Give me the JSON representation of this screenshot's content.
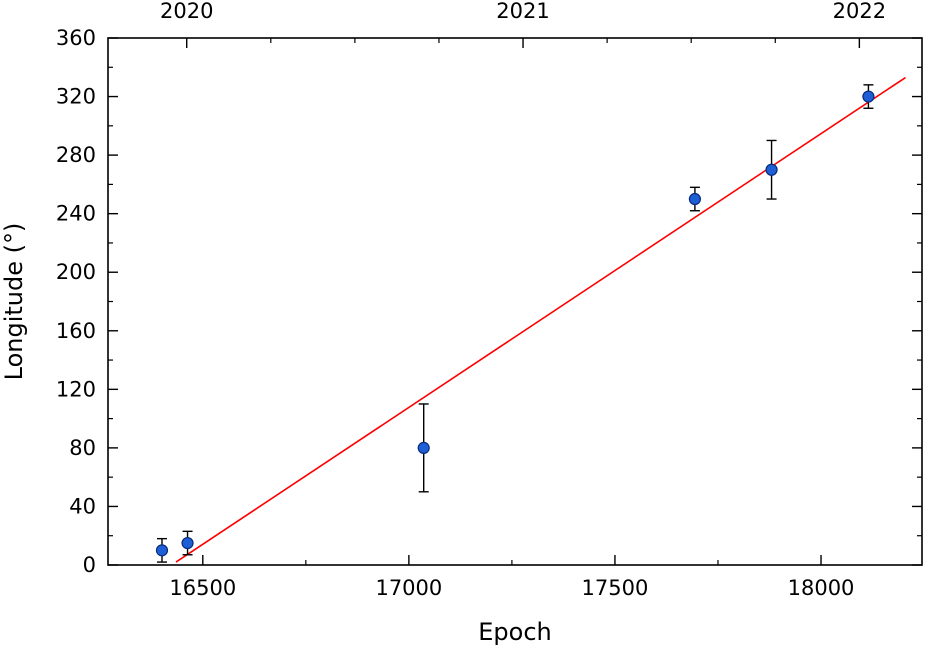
{
  "chart_data": {
    "type": "scatter",
    "title": "",
    "xlabel": "Epoch",
    "ylabel": "Longitude (°)",
    "xlim": [
      16270,
      18245
    ],
    "ylim": [
      0,
      360
    ],
    "x_ticks": [
      16500,
      17000,
      17500,
      18000
    ],
    "y_ticks": [
      0,
      40,
      80,
      120,
      160,
      200,
      240,
      280,
      320,
      360
    ],
    "top_axis": {
      "label_positions_epoch": [
        16461,
        17277,
        18093
      ],
      "labels": [
        "2020",
        "2021",
        "2022"
      ]
    },
    "grid": false,
    "series": [
      {
        "kind": "points_with_errorbars",
        "color": "#1f5fd6",
        "edge_color": "#0a2a7a",
        "points": [
          {
            "x": 16401,
            "y": 10,
            "err": 8
          },
          {
            "x": 16463,
            "y": 15,
            "err": 8
          },
          {
            "x": 17036,
            "y": 80,
            "err": 30
          },
          {
            "x": 17694,
            "y": 250,
            "err": 8
          },
          {
            "x": 17880,
            "y": 270,
            "err": 20
          },
          {
            "x": 18115,
            "y": 320,
            "err": 8
          }
        ]
      },
      {
        "kind": "fit_line",
        "color": "#ff0000",
        "x": [
          16435,
          18205
        ],
        "y": [
          2,
          333
        ]
      }
    ]
  }
}
